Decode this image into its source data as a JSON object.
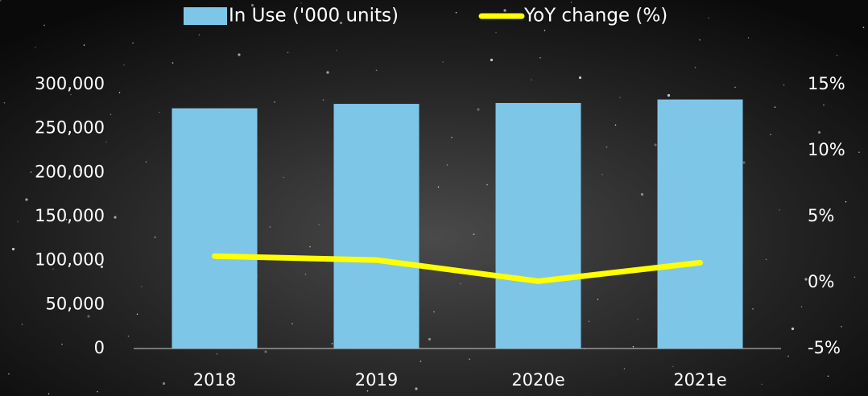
{
  "chart_data": {
    "type": "bar_line",
    "categories": [
      "2018",
      "2019",
      "2020e",
      "2021e"
    ],
    "series": [
      {
        "name": "In Use ('000 units)",
        "type": "bar",
        "color": "#7ec6e8",
        "values": [
          273000,
          278000,
          279000,
          283000
        ]
      },
      {
        "name": "YoY change (%)",
        "type": "line",
        "axis": "y2",
        "color": "#ffff00",
        "values": [
          2.0,
          1.7,
          0.1,
          1.5
        ]
      }
    ],
    "ylim": [
      0,
      300000
    ],
    "yticks": [
      0,
      {
        "value": 50000,
        "label": "50,000"
      },
      {
        "value": 100000,
        "label": "100,000"
      },
      {
        "value": 150000,
        "label": "150,000"
      },
      {
        "value": 200000,
        "label": "200,000"
      },
      {
        "value": 250000,
        "label": "250,000"
      },
      {
        "value": 300000,
        "label": "300,000"
      }
    ],
    "y2lim": [
      -5,
      15
    ],
    "y2ticks": [
      {
        "value": -5,
        "label": "-5%"
      },
      {
        "value": 0,
        "label": "0%"
      },
      {
        "value": 5,
        "label": "5%"
      },
      {
        "value": 10,
        "label": "10%"
      },
      {
        "value": 15,
        "label": "15%"
      }
    ],
    "legend": "top"
  }
}
